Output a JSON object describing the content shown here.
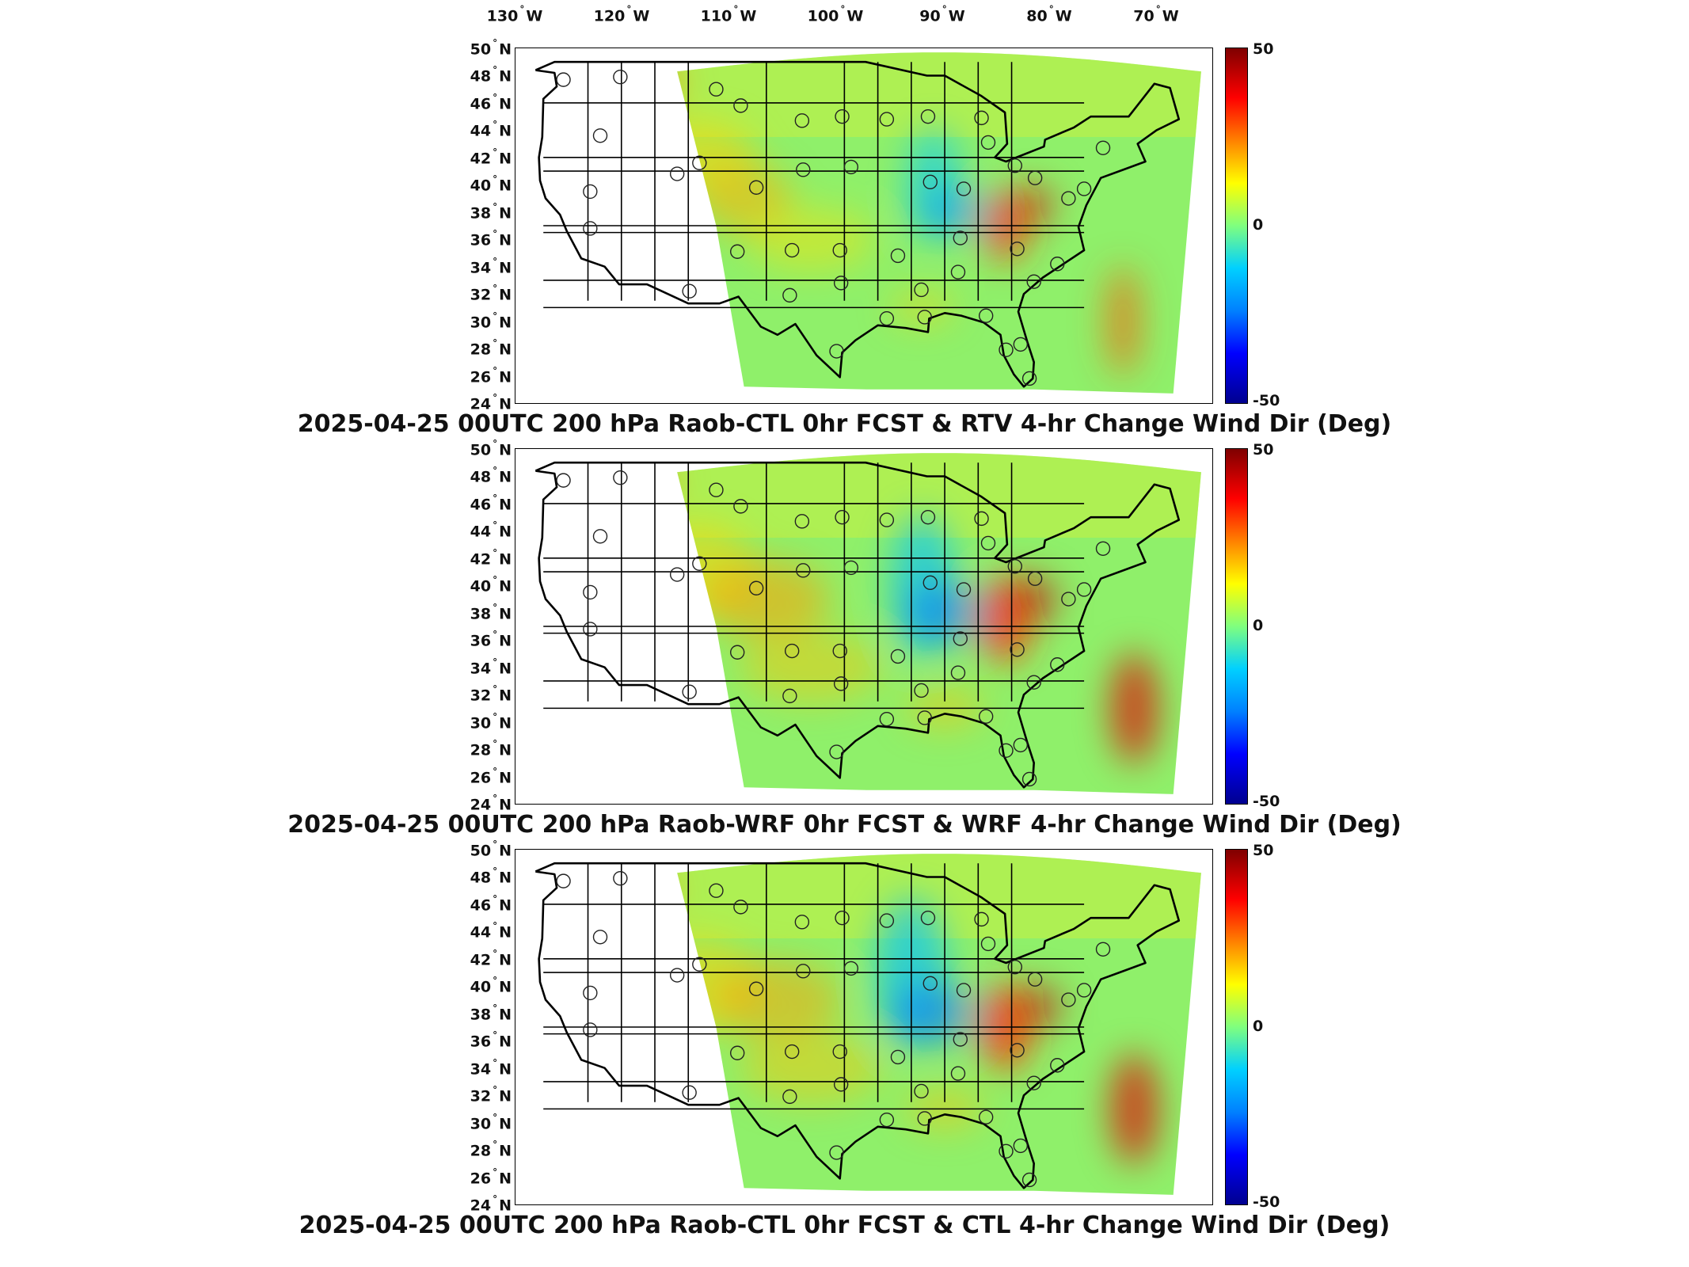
{
  "lon_ticks": [
    {
      "deg": "130",
      "hemi": "W"
    },
    {
      "deg": "120",
      "hemi": "W"
    },
    {
      "deg": "110",
      "hemi": "W"
    },
    {
      "deg": "100",
      "hemi": "W"
    },
    {
      "deg": "90",
      "hemi": "W"
    },
    {
      "deg": "80",
      "hemi": "W"
    },
    {
      "deg": "70",
      "hemi": "W"
    }
  ],
  "lat_ticks": [
    {
      "deg": "50",
      "hemi": "N"
    },
    {
      "deg": "48",
      "hemi": "N"
    },
    {
      "deg": "46",
      "hemi": "N"
    },
    {
      "deg": "44",
      "hemi": "N"
    },
    {
      "deg": "42",
      "hemi": "N"
    },
    {
      "deg": "40",
      "hemi": "N"
    },
    {
      "deg": "38",
      "hemi": "N"
    },
    {
      "deg": "36",
      "hemi": "N"
    },
    {
      "deg": "34",
      "hemi": "N"
    },
    {
      "deg": "32",
      "hemi": "N"
    },
    {
      "deg": "30",
      "hemi": "N"
    },
    {
      "deg": "28",
      "hemi": "N"
    },
    {
      "deg": "26",
      "hemi": "N"
    },
    {
      "deg": "24",
      "hemi": "N"
    }
  ],
  "colorbar": {
    "max_label": "50",
    "mid_label": "0",
    "min_label": "-50",
    "colormap": [
      "#7f0000",
      "#ff0000",
      "#ff8c00",
      "#ffff00",
      "#7fff7f",
      "#00d0ff",
      "#0080ff",
      "#0000ff",
      "#00008f"
    ]
  },
  "panels": [
    {
      "title": "2025-04-25 00UTC 200 hPa Raob-CTL 0hr FCST & RTV 4-hr Change Wind Dir (Deg)"
    },
    {
      "title": "2025-04-25 00UTC 200 hPa Raob-WRF 0hr FCST & WRF 4-hr Change Wind Dir (Deg)"
    },
    {
      "title": "2025-04-25 00UTC 200 hPa Raob-CTL 0hr FCST & CTL 4-hr Change Wind Dir (Deg)"
    }
  ],
  "raob_stations": [
    {
      "lon": -122.2,
      "lat": 47.7
    },
    {
      "lon": -117.1,
      "lat": 47.9
    },
    {
      "lon": -108.5,
      "lat": 47.0
    },
    {
      "lon": -106.3,
      "lat": 45.8
    },
    {
      "lon": -100.8,
      "lat": 44.7
    },
    {
      "lon": -97.2,
      "lat": 45.0
    },
    {
      "lon": -93.2,
      "lat": 44.8
    },
    {
      "lon": -89.5,
      "lat": 45.0
    },
    {
      "lon": -84.7,
      "lat": 44.9
    },
    {
      "lon": -84.1,
      "lat": 43.1
    },
    {
      "lon": -73.8,
      "lat": 42.7
    },
    {
      "lon": -118.9,
      "lat": 43.6
    },
    {
      "lon": -110.0,
      "lat": 41.6
    },
    {
      "lon": -119.8,
      "lat": 39.5
    },
    {
      "lon": -112.0,
      "lat": 40.8
    },
    {
      "lon": -104.9,
      "lat": 39.8
    },
    {
      "lon": -100.7,
      "lat": 41.1
    },
    {
      "lon": -96.4,
      "lat": 41.3
    },
    {
      "lon": -89.3,
      "lat": 40.2
    },
    {
      "lon": -86.3,
      "lat": 39.7
    },
    {
      "lon": -81.7,
      "lat": 41.4
    },
    {
      "lon": -79.9,
      "lat": 40.5
    },
    {
      "lon": -76.9,
      "lat": 39.0
    },
    {
      "lon": -75.5,
      "lat": 39.7
    },
    {
      "lon": -119.8,
      "lat": 36.8
    },
    {
      "lon": -110.9,
      "lat": 32.2
    },
    {
      "lon": -106.6,
      "lat": 35.1
    },
    {
      "lon": -101.7,
      "lat": 35.2
    },
    {
      "lon": -97.4,
      "lat": 35.2
    },
    {
      "lon": -92.2,
      "lat": 34.8
    },
    {
      "lon": -86.6,
      "lat": 36.1
    },
    {
      "lon": -81.5,
      "lat": 35.3
    },
    {
      "lon": -77.9,
      "lat": 34.2
    },
    {
      "lon": -80.0,
      "lat": 32.9
    },
    {
      "lon": -86.8,
      "lat": 33.6
    },
    {
      "lon": -90.1,
      "lat": 32.3
    },
    {
      "lon": -97.3,
      "lat": 32.8
    },
    {
      "lon": -101.9,
      "lat": 31.9
    },
    {
      "lon": -97.7,
      "lat": 27.8
    },
    {
      "lon": -93.2,
      "lat": 30.2
    },
    {
      "lon": -89.8,
      "lat": 30.3
    },
    {
      "lon": -84.3,
      "lat": 30.4
    },
    {
      "lon": -81.2,
      "lat": 28.3
    },
    {
      "lon": -82.5,
      "lat": 27.9
    },
    {
      "lon": -80.4,
      "lat": 25.8
    }
  ]
}
